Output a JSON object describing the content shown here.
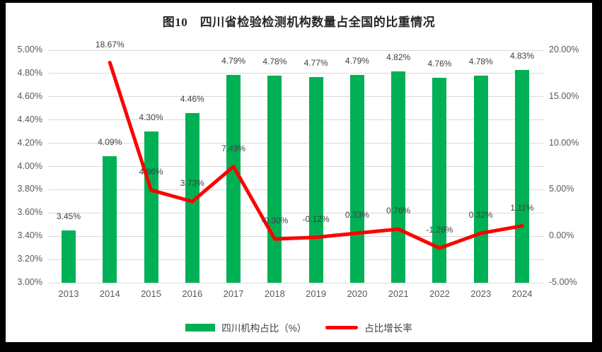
{
  "chart_data": {
    "type": "combo-bar-line",
    "title": "图10　四川省检验检测机构数量占全国的比重情况",
    "categories": [
      "2013",
      "2014",
      "2015",
      "2016",
      "2017",
      "2018",
      "2019",
      "2020",
      "2021",
      "2022",
      "2023",
      "2024"
    ],
    "series": [
      {
        "name": "四川机构占比（%）",
        "type": "bar",
        "axis": "left",
        "color": "#00B055",
        "values": [
          3.45,
          4.09,
          4.3,
          4.46,
          4.79,
          4.78,
          4.77,
          4.79,
          4.82,
          4.76,
          4.78,
          4.83
        ],
        "labels": [
          "3.45%",
          "4.09%",
          "4.30%",
          "4.46%",
          "4.79%",
          "4.78%",
          "4.77%",
          "4.79%",
          "4.82%",
          "4.76%",
          "4.78%",
          "4.83%"
        ]
      },
      {
        "name": "占比增长率",
        "type": "line",
        "axis": "right",
        "color": "#FF0000",
        "values": [
          null,
          18.67,
          4.96,
          3.73,
          7.49,
          -0.3,
          -0.12,
          0.33,
          0.76,
          -1.28,
          0.32,
          1.11
        ],
        "labels": [
          null,
          "18.67%",
          "4.96%",
          "3.73%",
          "7.49%",
          "-0.30%",
          "-0.12%",
          "0.33%",
          "0.76%",
          "-1.28%",
          "0.32%",
          "1.11%"
        ]
      }
    ],
    "left_axis": {
      "min": 3,
      "max": 5,
      "tick_values": [
        3,
        3.2,
        3.4,
        3.6,
        3.8,
        4,
        4.2,
        4.4,
        4.6,
        4.8,
        5
      ],
      "tick_labels": [
        "3.00%",
        "3.20%",
        "3.40%",
        "3.60%",
        "3.80%",
        "4.00%",
        "4.20%",
        "4.40%",
        "4.60%",
        "4.80%",
        "5.00%"
      ]
    },
    "right_axis": {
      "min": -5,
      "max": 20,
      "tick_values": [
        -5,
        0,
        5,
        10,
        15,
        20
      ],
      "tick_labels": [
        "-5.00%",
        "0.00%",
        "5.00%",
        "10.00%",
        "15.00%",
        "20.00%"
      ]
    },
    "grid": true,
    "legend_position": "bottom"
  },
  "colors": {
    "bar_green": "#00B055",
    "line_red": "#FF0000",
    "gridline": "#D9D9D9",
    "axis_text": "#595959",
    "data_label_text": "#404040",
    "title_text": "#262626",
    "frame": "#000000",
    "background": "#FFFFFF"
  }
}
